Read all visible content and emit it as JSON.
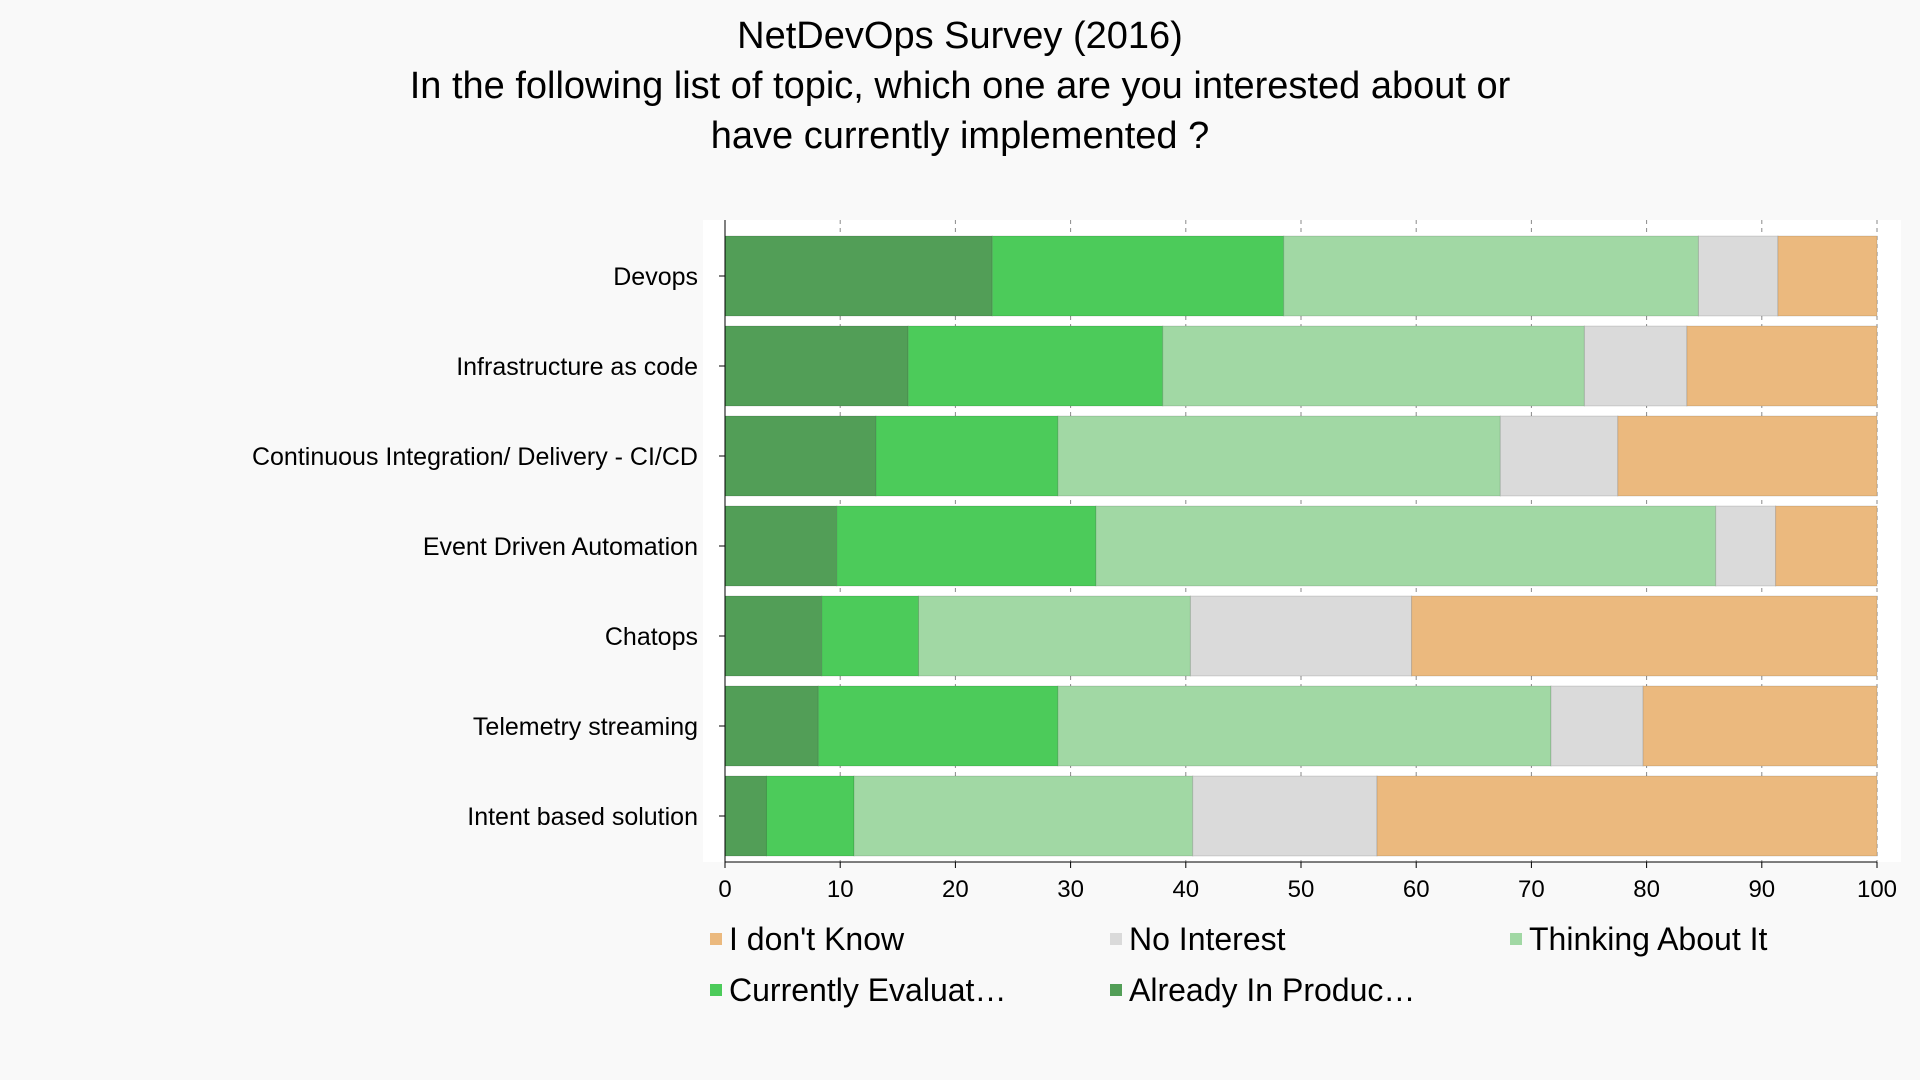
{
  "chart_data": {
    "type": "bar",
    "orientation": "horizontal",
    "stacked": true,
    "title_lines": [
      "NetDevOps Survey (2016)",
      "In the following list of topic, which one are you interested about or",
      "have currently implemented ?"
    ],
    "categories": [
      "Devops",
      "Infrastructure as code",
      "Continuous Integration/ Delivery - CI/CD",
      "Event Driven Automation",
      "Chatops",
      "Telemetry streaming",
      "Intent based solution"
    ],
    "series": [
      {
        "name": "Already In Production",
        "legend_label": "Already In Produc…",
        "color": "#529e57",
        "values": [
          23.2,
          15.9,
          13.1,
          9.7,
          8.4,
          8.1,
          3.6
        ]
      },
      {
        "name": "Currently Evaluating",
        "legend_label": "Currently Evaluat…",
        "color": "#4ccb5a",
        "values": [
          25.3,
          22.1,
          15.8,
          22.5,
          8.4,
          20.8,
          7.6
        ]
      },
      {
        "name": "Thinking About It",
        "legend_label": "Thinking About It",
        "color": "#a1d8a4",
        "values": [
          36.0,
          36.6,
          38.4,
          53.8,
          23.6,
          42.8,
          29.4
        ]
      },
      {
        "name": "No Interest",
        "legend_label": "No Interest",
        "color": "#dadada",
        "values": [
          6.9,
          8.9,
          10.2,
          5.2,
          19.2,
          8.0,
          16.0
        ]
      },
      {
        "name": "I don't Know",
        "legend_label": "I don't Know",
        "color": "#ebb97e",
        "values": [
          8.6,
          16.5,
          22.5,
          8.8,
          40.4,
          20.3,
          43.4
        ]
      }
    ],
    "legend_order": [
      "I don't Know",
      "No Interest",
      "Thinking About It",
      "Currently Evaluating",
      "Already In Production"
    ],
    "xlim": [
      0,
      100
    ],
    "xticks": [
      0,
      10,
      20,
      30,
      40,
      50,
      60,
      70,
      80,
      90,
      100
    ],
    "xlabel": "",
    "ylabel": "",
    "grid": "vertical dashed",
    "legend_position": "bottom"
  }
}
